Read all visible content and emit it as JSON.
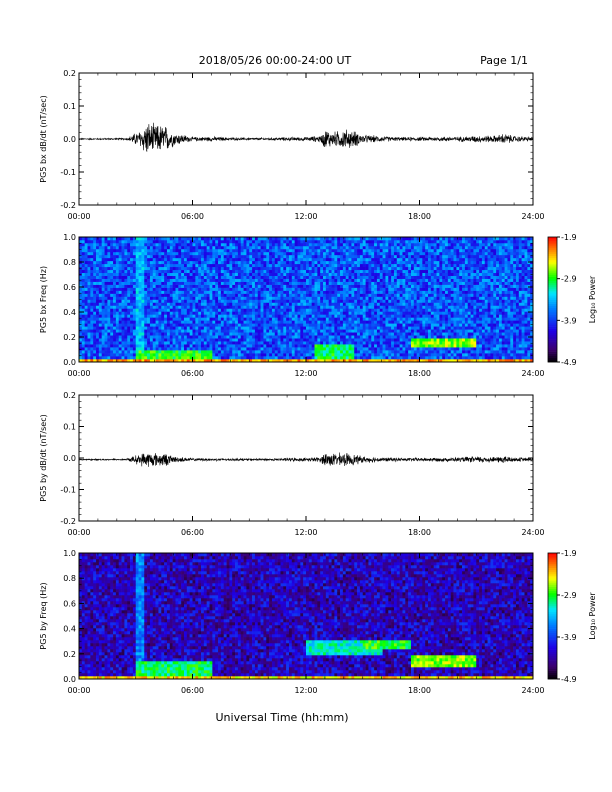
{
  "header": {
    "title": "2018/05/26  00:00-24:00 UT",
    "page": "Page 1/1"
  },
  "footer": {
    "xlabel": "Universal Time (hh:mm)"
  },
  "chart_data": [
    {
      "type": "line",
      "ylabel": "PG5 bx dB/dt (nT/sec)",
      "xlim": [
        0,
        24
      ],
      "ylim": [
        -0.2,
        0.2
      ],
      "yticks": [
        "0.2",
        "0.1",
        "0.0",
        "-0.1",
        "-0.2"
      ],
      "xticks": [
        "00:00",
        "06:00",
        "12:00",
        "18:00",
        "24:00"
      ],
      "baseline": 0.0,
      "envelope": [
        [
          0,
          0.002
        ],
        [
          2.5,
          0.003
        ],
        [
          3.2,
          0.03
        ],
        [
          3.6,
          0.06
        ],
        [
          4.0,
          0.05
        ],
        [
          4.5,
          0.05
        ],
        [
          5.0,
          0.025
        ],
        [
          6.0,
          0.007
        ],
        [
          7.0,
          0.008
        ],
        [
          8.0,
          0.005
        ],
        [
          9.0,
          0.004
        ],
        [
          10.0,
          0.005
        ],
        [
          11.0,
          0.006
        ],
        [
          12.0,
          0.007
        ],
        [
          12.8,
          0.012
        ],
        [
          13.0,
          0.035
        ],
        [
          13.5,
          0.025
        ],
        [
          14.0,
          0.035
        ],
        [
          14.5,
          0.03
        ],
        [
          15.0,
          0.015
        ],
        [
          16.0,
          0.01
        ],
        [
          17.0,
          0.006
        ],
        [
          18.0,
          0.007
        ],
        [
          19.0,
          0.008
        ],
        [
          20.0,
          0.008
        ],
        [
          21.0,
          0.012
        ],
        [
          22.0,
          0.012
        ],
        [
          22.5,
          0.02
        ],
        [
          23.0,
          0.01
        ],
        [
          24,
          0.008
        ]
      ]
    },
    {
      "type": "heatmap",
      "ylabel": "PG5 bx Freq (Hz)",
      "xlim": [
        0,
        24
      ],
      "ylim": [
        0,
        1.0
      ],
      "yticks": [
        "1.0",
        "0.8",
        "0.6",
        "0.4",
        "0.2",
        "0.0"
      ],
      "xticks": [
        "00:00",
        "06:00",
        "12:00",
        "18:00",
        "24:00"
      ],
      "colorbar": {
        "label": "Log₁₀ Power",
        "ticks": [
          "-1.9",
          "-2.9",
          "-3.9",
          "-4.9"
        ],
        "range": [
          -4.9,
          -1.9
        ]
      },
      "background_level": -3.8,
      "features": [
        {
          "t": [
            3.0,
            3.5
          ],
          "f": [
            0.0,
            1.0
          ],
          "level": -3.4
        },
        {
          "t": [
            3.0,
            7.0
          ],
          "f": [
            0.0,
            0.1
          ],
          "level": -2.9
        },
        {
          "t": [
            12.5,
            14.5
          ],
          "f": [
            0.0,
            0.15
          ],
          "level": -3.0
        },
        {
          "t": [
            17.5,
            21.0
          ],
          "f": [
            0.12,
            0.2
          ],
          "level": -2.7
        },
        {
          "t": [
            0.0,
            24.0
          ],
          "f": [
            0.0,
            0.03
          ],
          "level": -2.3
        }
      ]
    },
    {
      "type": "line",
      "ylabel": "PG5 by dB/dt (nT/sec)",
      "xlim": [
        0,
        24
      ],
      "ylim": [
        -0.2,
        0.2
      ],
      "yticks": [
        "0.2",
        "0.1",
        "0.0",
        "-0.1",
        "-0.2"
      ],
      "xticks": [
        "00:00",
        "06:00",
        "12:00",
        "18:00",
        "24:00"
      ],
      "baseline": -0.005,
      "envelope": [
        [
          0,
          0.002
        ],
        [
          2.5,
          0.003
        ],
        [
          3.2,
          0.02
        ],
        [
          3.6,
          0.03
        ],
        [
          4.0,
          0.025
        ],
        [
          4.5,
          0.025
        ],
        [
          5.0,
          0.012
        ],
        [
          6.0,
          0.005
        ],
        [
          7.0,
          0.005
        ],
        [
          8.0,
          0.004
        ],
        [
          9.0,
          0.004
        ],
        [
          10.0,
          0.004
        ],
        [
          11.0,
          0.006
        ],
        [
          12.0,
          0.006
        ],
        [
          12.8,
          0.01
        ],
        [
          13.0,
          0.03
        ],
        [
          13.5,
          0.022
        ],
        [
          14.0,
          0.025
        ],
        [
          14.5,
          0.02
        ],
        [
          15.0,
          0.012
        ],
        [
          16.0,
          0.008
        ],
        [
          17.0,
          0.006
        ],
        [
          18.0,
          0.007
        ],
        [
          19.0,
          0.007
        ],
        [
          20.0,
          0.008
        ],
        [
          21.0,
          0.012
        ],
        [
          22.0,
          0.01
        ],
        [
          22.5,
          0.015
        ],
        [
          23.0,
          0.008
        ],
        [
          24,
          0.006
        ]
      ]
    },
    {
      "type": "heatmap",
      "ylabel": "PG5 by Freq (Hz)",
      "xlim": [
        0,
        24
      ],
      "ylim": [
        0,
        1.0
      ],
      "yticks": [
        "1.0",
        "0.8",
        "0.6",
        "0.4",
        "0.2",
        "0.0"
      ],
      "xticks": [
        "00:00",
        "06:00",
        "12:00",
        "18:00",
        "24:00"
      ],
      "colorbar": {
        "label": "Log₁₀ Power",
        "ticks": [
          "-1.9",
          "-2.9",
          "-3.9",
          "-4.9"
        ],
        "range": [
          -4.9,
          -1.9
        ]
      },
      "background_level": -4.3,
      "features": [
        {
          "t": [
            3.0,
            3.5
          ],
          "f": [
            0.0,
            1.0
          ],
          "level": -3.6
        },
        {
          "t": [
            3.0,
            7.0
          ],
          "f": [
            0.0,
            0.15
          ],
          "level": -3.0
        },
        {
          "t": [
            12.0,
            16.0
          ],
          "f": [
            0.2,
            0.3
          ],
          "level": -3.2
        },
        {
          "t": [
            15.0,
            17.5
          ],
          "f": [
            0.25,
            0.32
          ],
          "level": -2.9
        },
        {
          "t": [
            17.5,
            21.0
          ],
          "f": [
            0.1,
            0.18
          ],
          "level": -2.7
        },
        {
          "t": [
            0.0,
            24.0
          ],
          "f": [
            0.0,
            0.03
          ],
          "level": -2.4
        }
      ]
    }
  ]
}
